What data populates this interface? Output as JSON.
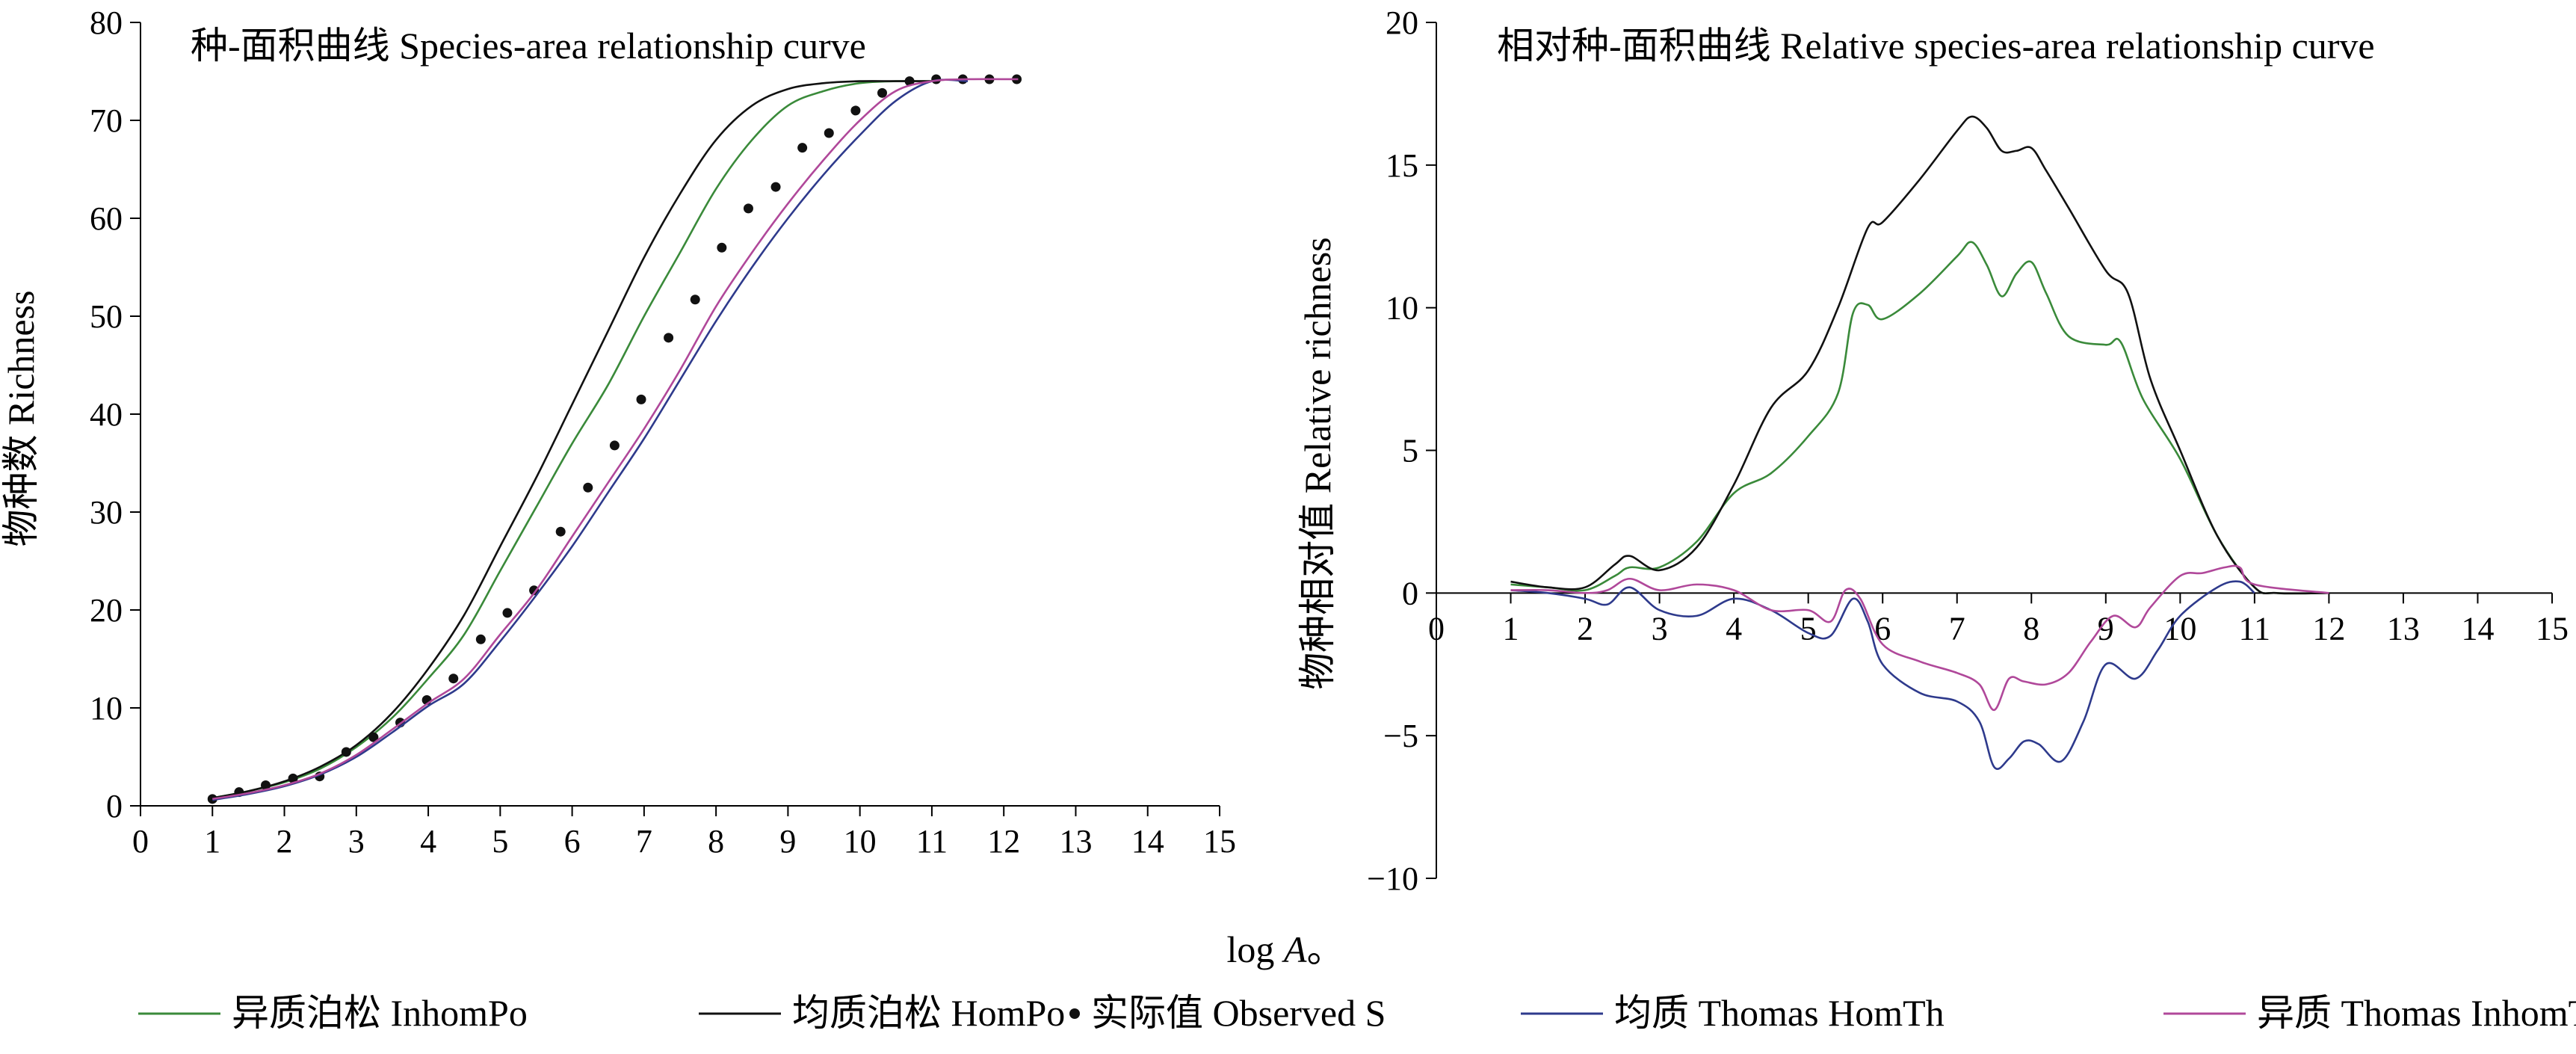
{
  "figure": {
    "xlabel_prefix": "log ",
    "xlabel_var": "A",
    "xlabel_suffix": "。"
  },
  "chart_data": [
    {
      "type": "line",
      "title": "种-面积曲线  Species-area relationship curve",
      "xlabel": "log A",
      "ylabel": "物种数  Richness",
      "xlim": [
        0,
        15
      ],
      "ylim": [
        0,
        80
      ],
      "xticks": [
        0,
        1,
        2,
        3,
        4,
        5,
        6,
        7,
        8,
        9,
        10,
        11,
        12,
        13,
        14,
        15
      ],
      "yticks": [
        0,
        10,
        20,
        30,
        40,
        50,
        60,
        70,
        80
      ],
      "grid": false,
      "series": [
        {
          "name": "异质泊松 InhomPo",
          "color": "#3a8a3a",
          "style": "line",
          "x": [
            1,
            1.5,
            2,
            2.5,
            3,
            3.5,
            4,
            4.5,
            5,
            5.5,
            6,
            6.5,
            7,
            7.5,
            8,
            8.5,
            9,
            9.5,
            10,
            10.5,
            11
          ],
          "y": [
            0.8,
            1.5,
            2.4,
            3.8,
            6,
            9,
            13,
            17.5,
            24,
            30.5,
            37,
            43,
            50,
            56.5,
            63,
            68,
            71.5,
            73,
            73.8,
            74,
            74
          ]
        },
        {
          "name": "均质泊松 HomPo",
          "color": "#111111",
          "style": "line",
          "x": [
            1,
            1.5,
            2,
            2.5,
            3,
            3.5,
            4,
            4.5,
            5,
            5.5,
            6,
            6.5,
            7,
            7.5,
            8,
            8.5,
            9,
            9.5,
            10,
            10.5,
            11
          ],
          "y": [
            0.8,
            1.5,
            2.5,
            4,
            6.2,
            9.5,
            14,
            19.5,
            26.5,
            33.5,
            41,
            48.5,
            56,
            62.5,
            68,
            71.5,
            73.2,
            73.8,
            74,
            74,
            74
          ]
        },
        {
          "name": "实际值 Observed S",
          "color": "#111111",
          "style": "points",
          "x": [
            1,
            1.37,
            1.74,
            2.12,
            2.49,
            2.86,
            3.24,
            3.61,
            3.98,
            4.35,
            4.73,
            5.1,
            5.47,
            5.84,
            6.22,
            6.59,
            6.96,
            7.34,
            7.71,
            8.08,
            8.45,
            8.83,
            9.2,
            9.57,
            9.94,
            10.31,
            10.69,
            11.06,
            11.43,
            11.8,
            12.18
          ],
          "y": [
            0.7,
            1.4,
            2.1,
            2.8,
            3.0,
            5.5,
            7.0,
            8.5,
            10.8,
            13.0,
            17.0,
            19.7,
            22.0,
            28.0,
            32.5,
            36.8,
            41.5,
            47.8,
            51.7,
            57.0,
            61.0,
            63.2,
            67.2,
            68.7,
            71.0,
            72.8,
            74.0,
            74.2,
            74.2,
            74.2,
            74.2
          ]
        },
        {
          "name": "均质 Thomas HomTh",
          "color": "#2e3a8c",
          "style": "line",
          "x": [
            1,
            1.5,
            2,
            2.5,
            3,
            3.5,
            4,
            4.5,
            5,
            5.5,
            6,
            6.5,
            7,
            7.5,
            8,
            8.5,
            9,
            9.5,
            10,
            10.5,
            11,
            11.5
          ],
          "y": [
            0.6,
            1.2,
            2.0,
            3.2,
            5.0,
            7.5,
            10.2,
            12.5,
            16.8,
            21.5,
            26.5,
            32,
            37.5,
            43.5,
            49.5,
            55,
            60,
            64.5,
            68.5,
            72,
            74,
            74
          ]
        },
        {
          "name": "异质 Thomas InhomTh",
          "color": "#b0489a",
          "style": "line",
          "x": [
            1,
            1.5,
            2,
            2.5,
            3,
            3.5,
            4,
            4.5,
            5,
            5.5,
            6,
            6.5,
            7,
            7.5,
            8,
            8.5,
            9,
            9.5,
            10,
            10.5,
            11,
            11.5,
            12.2
          ],
          "y": [
            0.7,
            1.3,
            2.1,
            3.3,
            5.2,
            7.8,
            10.5,
            13,
            17.5,
            22,
            27.5,
            33,
            38.5,
            44.5,
            51,
            56.5,
            61.5,
            66,
            70,
            73,
            74,
            74.2,
            74.2
          ]
        }
      ]
    },
    {
      "type": "line",
      "title": "相对种-面积曲线  Relative species-area relationship curve",
      "xlabel": "log A",
      "ylabel": "物种相对值  Relative richness",
      "xlim": [
        0,
        15
      ],
      "ylim": [
        -10,
        20
      ],
      "xticks": [
        0,
        1,
        2,
        3,
        4,
        5,
        6,
        7,
        8,
        9,
        10,
        11,
        12,
        13,
        14,
        15
      ],
      "yticks": [
        -10,
        -5,
        0,
        5,
        10,
        15,
        20
      ],
      "grid": false,
      "series": [
        {
          "name": "异质泊松 InhomPo",
          "color": "#3a8a3a",
          "x": [
            1,
            1.5,
            2,
            2.4,
            2.6,
            3,
            3.5,
            4,
            4.5,
            5,
            5.4,
            5.6,
            5.8,
            6,
            6.5,
            7,
            7.2,
            7.4,
            7.6,
            7.8,
            8,
            8.2,
            8.5,
            9,
            9.2,
            9.5,
            10,
            10.5,
            11,
            11.3,
            12
          ],
          "y": [
            0.3,
            0.2,
            0.1,
            0.6,
            0.9,
            0.9,
            1.8,
            3.5,
            4.2,
            5.5,
            7.0,
            9.8,
            10.1,
            9.6,
            10.5,
            11.8,
            12.3,
            11.5,
            10.4,
            11.2,
            11.6,
            10.5,
            9.0,
            8.7,
            8.8,
            6.8,
            4.7,
            2.0,
            0.2,
            0,
            0
          ]
        },
        {
          "name": "均质泊松 HomPo",
          "color": "#111111",
          "x": [
            1,
            1.5,
            2,
            2.4,
            2.6,
            3,
            3.5,
            4,
            4.5,
            5,
            5.4,
            5.8,
            6,
            6.5,
            7,
            7.2,
            7.4,
            7.6,
            7.8,
            8,
            8.2,
            8.5,
            9,
            9.3,
            9.6,
            10,
            10.5,
            11,
            11.3,
            12
          ],
          "y": [
            0.4,
            0.2,
            0.2,
            1.0,
            1.3,
            0.8,
            1.6,
            3.8,
            6.5,
            7.8,
            10.0,
            12.8,
            13.0,
            14.5,
            16.2,
            16.7,
            16.3,
            15.5,
            15.5,
            15.6,
            14.8,
            13.5,
            11.3,
            10.5,
            7.5,
            5.0,
            2.0,
            0.2,
            0,
            0
          ]
        },
        {
          "name": "均质 Thomas HomTh",
          "color": "#2e3a8c",
          "x": [
            1,
            1.5,
            2,
            2.3,
            2.6,
            3,
            3.5,
            4,
            4.5,
            5,
            5.3,
            5.6,
            5.8,
            6,
            6.5,
            7,
            7.3,
            7.5,
            7.7,
            7.9,
            8.1,
            8.4,
            8.7,
            9,
            9.4,
            9.7,
            10,
            10.5,
            10.8,
            11
          ],
          "y": [
            0.1,
            0.0,
            -0.2,
            -0.4,
            0.2,
            -0.6,
            -0.8,
            -0.2,
            -0.6,
            -1.4,
            -1.5,
            -0.2,
            -1.0,
            -2.5,
            -3.5,
            -3.8,
            -4.5,
            -6.1,
            -5.8,
            -5.2,
            -5.3,
            -5.9,
            -4.5,
            -2.5,
            -3.0,
            -2.0,
            -0.8,
            0.2,
            0.4,
            0
          ]
        },
        {
          "name": "异质 Thomas InhomTh",
          "color": "#b0489a",
          "x": [
            1,
            1.5,
            2,
            2.3,
            2.6,
            3,
            3.5,
            4,
            4.5,
            5,
            5.3,
            5.5,
            5.7,
            6,
            6.5,
            7,
            7.3,
            7.5,
            7.7,
            7.9,
            8.2,
            8.5,
            8.8,
            9.1,
            9.4,
            9.6,
            10,
            10.3,
            10.6,
            10.8,
            11,
            12
          ],
          "y": [
            0.1,
            0.1,
            0.0,
            0.1,
            0.5,
            0.1,
            0.3,
            0.1,
            -0.6,
            -0.6,
            -1.0,
            0.1,
            -0.2,
            -1.8,
            -2.4,
            -2.8,
            -3.2,
            -4.1,
            -3.0,
            -3.1,
            -3.2,
            -2.8,
            -1.7,
            -0.8,
            -1.2,
            -0.5,
            0.6,
            0.7,
            0.9,
            0.9,
            0.3,
            0
          ]
        }
      ]
    }
  ],
  "legend": [
    {
      "label": "异质泊松 InhomPo",
      "color": "#3a8a3a",
      "marker": "line"
    },
    {
      "label": "均质泊松 HomPo",
      "color": "#111111",
      "marker": "line"
    },
    {
      "label": "实际值 Observed S",
      "color": "#111111",
      "marker": "dot"
    },
    {
      "label": "均质 Thomas HomTh",
      "color": "#2e3a8c",
      "marker": "line"
    },
    {
      "label": "异质 Thomas InhomTh",
      "color": "#b0489a",
      "marker": "line"
    }
  ]
}
